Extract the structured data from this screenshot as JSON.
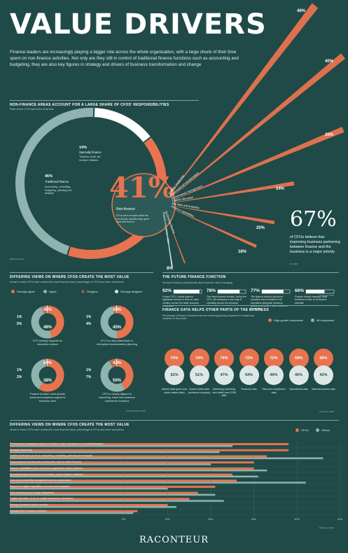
{
  "title": "VALUE DRIVERS",
  "intro": "Finance leaders are increasingly playing a bigger role across the whole organisation, with a large chunk of their time spent on non-finance activities. Not only are they still in control of traditional finance functions such as accounting and budgeting, they are also key figures in strategy and drivers of business transformation and change",
  "colors": {
    "background": "#1f4a47",
    "orange": "#e8734f",
    "teal": "#8fb3ae",
    "light": "#dde8e6"
  },
  "chart_data": [
    {
      "type": "pie",
      "title": "NON-FINANCE AREAS ACCOUNT FOR A LARGE SHARE OF CFOS' RESPONSIBILITIES",
      "subtitle": "Ratio where CFOs spend the most time",
      "slices": [
        {
          "label": "Traditional finance",
          "value": 46,
          "pct": "46%",
          "desc": "Accounting, controlling, budgeting, planning and analysis"
        },
        {
          "label": "Specialty finance",
          "value": 14,
          "pct": "14%",
          "desc": "Treasury, audit, tax, investor relations"
        },
        {
          "label": "Non-finance",
          "value": 41,
          "pct": "41%",
          "desc": "CFOs were surveyed about the non-finance activities they spent most their time on"
        }
      ],
      "rays": [
        {
          "label": "Strategy leadership",
          "value": 46,
          "pct": "46%"
        },
        {
          "label": "Organisational transformation",
          "value": 40,
          "pct": "40%"
        },
        {
          "label": "Performance management",
          "value": 35,
          "pct": "35%"
        },
        {
          "label": "Capital allocation",
          "value": 24,
          "pct": "24%"
        },
        {
          "label": "Big data and analytics",
          "value": 20,
          "pct": "20%"
        },
        {
          "label": "Finance capabilities",
          "value": 18,
          "pct": "18%"
        },
        {
          "label": "Technology fluency",
          "value": 8,
          "pct": "8%"
        },
        {
          "label": "Support and advice / M&A",
          "value": 0,
          "pct": ""
        }
      ],
      "source": "McKinsey 2019"
    },
    {
      "type": "pie",
      "title": "DIFFERING VIEWS ON WHERE CFOS CREATE THE MOST VALUE",
      "subtitle": "Areas in which CFOs have created the most financial value; percentage of CFOs and other executives",
      "legend": [
        "Strongly agree",
        "Agree",
        "Disagree",
        "Strongly disagree"
      ],
      "donuts": [
        {
          "strongly_agree": 46,
          "agree": 48,
          "disagree": 5,
          "strongly_disagree": 1,
          "caption": "CFO actively supports an innovation culture"
        },
        {
          "strongly_agree": 50,
          "agree": 45,
          "disagree": 4,
          "strongly_disagree": 1,
          "caption": "CFO is a key stakeholder in enterprise transformation planning"
        },
        {
          "strongly_agree": 59,
          "agree": 38,
          "disagree": 2,
          "strongly_disagree": 1,
          "caption": "Finance function must provide advanced analytical support to business units"
        },
        {
          "strongly_agree": 42,
          "agree": 50,
          "disagree": 7,
          "strongly_disagree": 1,
          "caption": "CFO is closely aligned to marketing, sales and customer experience functions"
        }
      ],
      "source": "Grant Thornton 2019"
    },
    {
      "type": "bar",
      "title": "THE FUTURE FINANCE FUNCTION",
      "subtitle": "Survey of finance professionals about how the role is changing",
      "items": [
        {
          "value": 92,
          "pct": "92%",
          "desc": "If more CFO, I would spend a significant amount of time on value creation across the wider business ecosystem"
        },
        {
          "value": 78,
          "pct": "78%",
          "desc": "The future finance function, led by the CFO, will champion a new way of operating across the business"
        },
        {
          "value": 77,
          "pct": "77%",
          "desc": "The finance function should be proactive and committed in its operations alongside business partners across the wider business ecosystem"
        },
        {
          "value": 66,
          "pct": "66%",
          "desc": "Finance should empower other functions to take on all finance activities"
        }
      ],
      "source": "Accenture 2019"
    },
    {
      "type": "bar",
      "title": "FINANCE DATA HELPS OTHER PARTS OF THE BUSINESS",
      "subtitle": "Percentage of finance functions that are receiving growing requests for insight and analytics in key areas",
      "series": [
        {
          "name": "High-growth companies"
        },
        {
          "name": "All companies"
        }
      ],
      "categories": [
        "Market data (price and trade related data)",
        "Social media data (sentiment analysis)",
        "Marketing (including web traffic) and CRM data",
        "Financial data",
        "Risk and compliance data",
        "Operational data",
        "Macroeconomic data"
      ],
      "high": [
        74,
        74,
        74,
        72,
        72,
        69,
        66
      ],
      "all": [
        52,
        51,
        47,
        54,
        49,
        45,
        42
      ],
      "source": "Accenture 2019"
    },
    {
      "type": "bar",
      "title": "DIFFERING VIEWS ON WHERE CFOS CREATE THE MOST VALUE",
      "subtitle": "Areas in which CFOs have created the most financial value; percentage of CFOs and other executives",
      "series": [
        {
          "name": "CFOs"
        },
        {
          "name": "Others"
        }
      ],
      "categories": [
        "Performance management (such as metrics, value management, incentives/targets)",
        "Strategic leadership",
        "Traditional finance (such as accounting, controlling, planning and analysis)",
        "Organisational transformation (enterprise-wide or within finance)",
        "Finance capabilities (such as finance-organisation talent pipeline)",
        "Specialty finance roles (such as treasury, audit, investor relations)",
        "Cost and productivity management across organisation",
        "Support for digital capabilities and advanced analytics",
        "M&A (including post-merger integration)",
        "Capital allocation (such as capital expenditure allocation)",
        "Pricing of products and/or services",
        "Management of activist investors"
      ],
      "cfos": [
        38,
        38,
        33,
        30,
        30,
        25,
        26,
        21,
        17,
        15,
        10,
        3
      ],
      "others": [
        25,
        22,
        46,
        20,
        33,
        31,
        42,
        10,
        21,
        23,
        12,
        2
      ],
      "xlim": [
        0,
        50
      ],
      "ticks": [
        "0%",
        "10%",
        "20%",
        "30%",
        "40%",
        "50%"
      ],
      "source": "McKinsey 2019"
    }
  ],
  "callout": {
    "pct": "67%",
    "text": "of CFOs believe that improving business partnering between finance and the business is a major priority",
    "source": "EY 2019"
  },
  "logo": "RACONTEUR"
}
